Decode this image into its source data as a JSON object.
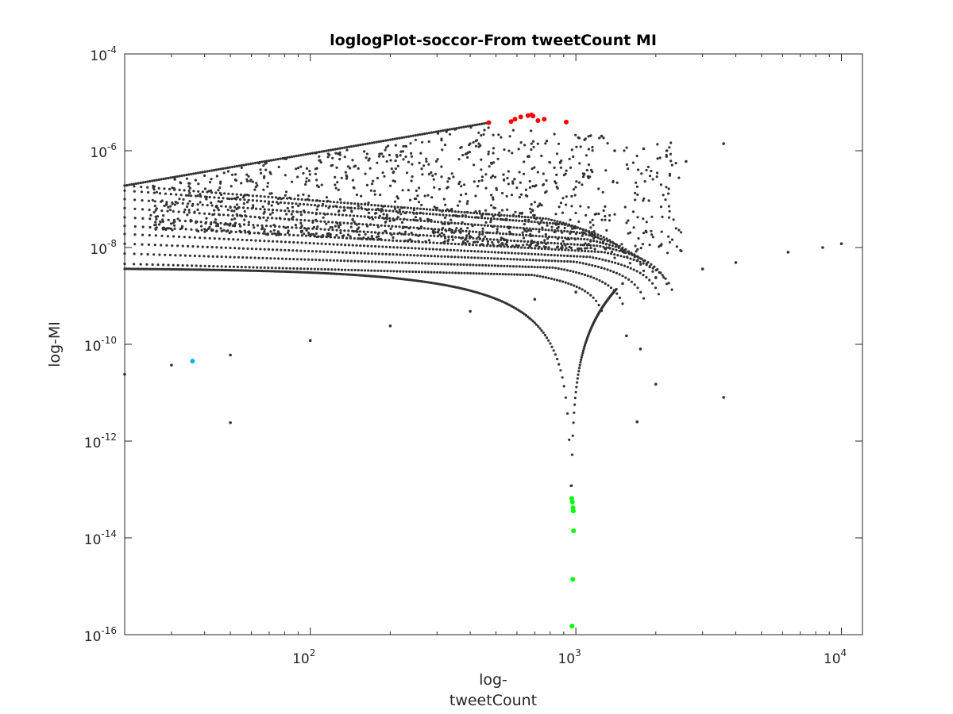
{
  "figure": {
    "title": "loglogPlot-soccor-From tweetCount MI",
    "xlabel_line1": "log-",
    "xlabel_line2": "tweetCount",
    "ylabel": "log-MI"
  },
  "chart_data": {
    "type": "scatter",
    "title": "loglogPlot-soccor-From tweetCount MI",
    "xlabel": "log-tweetCount",
    "ylabel": "log-MI",
    "xscale": "log",
    "yscale": "log",
    "xlim": [
      20,
      12000
    ],
    "ylim": [
      1e-16,
      0.0001
    ],
    "x_ticks": [
      {
        "base": "10",
        "exp": "2",
        "value": 100
      },
      {
        "base": "10",
        "exp": "3",
        "value": 1000
      },
      {
        "base": "10",
        "exp": "4",
        "value": 10000
      }
    ],
    "y_ticks": [
      {
        "base": "10",
        "exp": "-4",
        "value": 0.0001
      },
      {
        "base": "10",
        "exp": "-6",
        "value": 1e-06
      },
      {
        "base": "10",
        "exp": "-8",
        "value": 1e-08
      },
      {
        "base": "10",
        "exp": "-10",
        "value": 1e-10
      },
      {
        "base": "10",
        "exp": "-12",
        "value": 1e-12
      },
      {
        "base": "10",
        "exp": "-14",
        "value": 1e-14
      },
      {
        "base": "10",
        "exp": "-16",
        "value": 1e-16
      }
    ],
    "grid": false,
    "legend": "none",
    "colors": {
      "axes": "#262626",
      "points": "#333333",
      "highlight_top": "#ff0000",
      "highlight_bottom": "#00ff00",
      "highlight_cyan": "#00b4e6"
    },
    "series": [
      {
        "color": "#ff0000",
        "x": [
          470,
          570,
          590,
          620,
          660,
          680,
          690,
          720,
          760,
          920
        ],
        "y": [
          3.8e-06,
          4e-06,
          4.5e-06,
          5e-06,
          5.3e-06,
          5.5e-06,
          5.2e-06,
          4.2e-06,
          4.5e-06,
          3.9e-06
        ]
      },
      {
        "color": "#00ff00",
        "x": [
          965,
          970,
          975,
          978,
          980,
          973,
          968
        ],
        "y": [
          6.5e-14,
          5.5e-14,
          4.2e-14,
          3.6e-14,
          1.4e-14,
          1.4e-15,
          1.5e-16
        ]
      },
      {
        "color": "#00b4e6",
        "x": [
          36
        ],
        "y": [
          4.5e-11
        ]
      },
      {
        "color": "#333333",
        "x": [
          20,
          30,
          50,
          100,
          200,
          400,
          700,
          1000,
          1500,
          2000,
          3000,
          4000,
          6300,
          8500,
          10000,
          50,
          3600,
          3600,
          1800,
          2200,
          2600,
          1400,
          1250,
          2000,
          1700,
          1550,
          1750
        ],
        "y": [
          2.4e-11,
          3.7e-11,
          6e-11,
          1.2e-10,
          2.4e-10,
          4.8e-10,
          8.5e-10,
          1.2e-09,
          1.8e-09,
          2.4e-09,
          3.6e-09,
          4.9e-09,
          8e-09,
          1e-08,
          1.2e-08,
          2.4e-12,
          8e-12,
          1.4e-06,
          1.1e-06,
          1e-06,
          6e-07,
          1e-06,
          2e-06,
          1.5e-11,
          2.5e-12,
          1.5e-10,
          8e-11
        ]
      }
    ],
    "families": [
      {
        "kind": "cusp",
        "y0": 3.6e-09,
        "zero": 960
      },
      {
        "kind": "power",
        "x0": 20,
        "y0": 4.6e-09,
        "slope": -0.15,
        "x1": 1250
      },
      {
        "kind": "power",
        "x0": 20,
        "y0": 7.5e-09,
        "slope": -0.18,
        "x1": 1500
      },
      {
        "kind": "power",
        "x0": 20,
        "y0": 1.2e-08,
        "slope": -0.22,
        "x1": 1800
      },
      {
        "kind": "power",
        "x0": 20,
        "y0": 1.9e-08,
        "slope": -0.27,
        "x1": 2050
      },
      {
        "kind": "power",
        "x0": 20,
        "y0": 2.8e-08,
        "slope": -0.3,
        "x1": 2300
      },
      {
        "kind": "power",
        "x0": 20,
        "y0": 4.2e-08,
        "slope": -0.33,
        "x1": 2200
      },
      {
        "kind": "power",
        "x0": 20,
        "y0": 6.5e-08,
        "slope": -0.37,
        "x1": 2000
      },
      {
        "kind": "power",
        "x0": 20,
        "y0": 1e-07,
        "slope": -0.4,
        "x1": 1800
      },
      {
        "kind": "power",
        "x0": 20,
        "y0": 1.5e-07,
        "slope": -0.42,
        "x1": 1600
      },
      {
        "kind": "power",
        "x0": 20,
        "y0": 1.9e-07,
        "slope": -0.43,
        "x1": 1400
      },
      {
        "kind": "envelope",
        "x0": 20,
        "y0": 1.9e-07,
        "x1": 470,
        "y1": 3.8e-06
      },
      {
        "kind": "cloud",
        "n": 1300
      }
    ]
  }
}
